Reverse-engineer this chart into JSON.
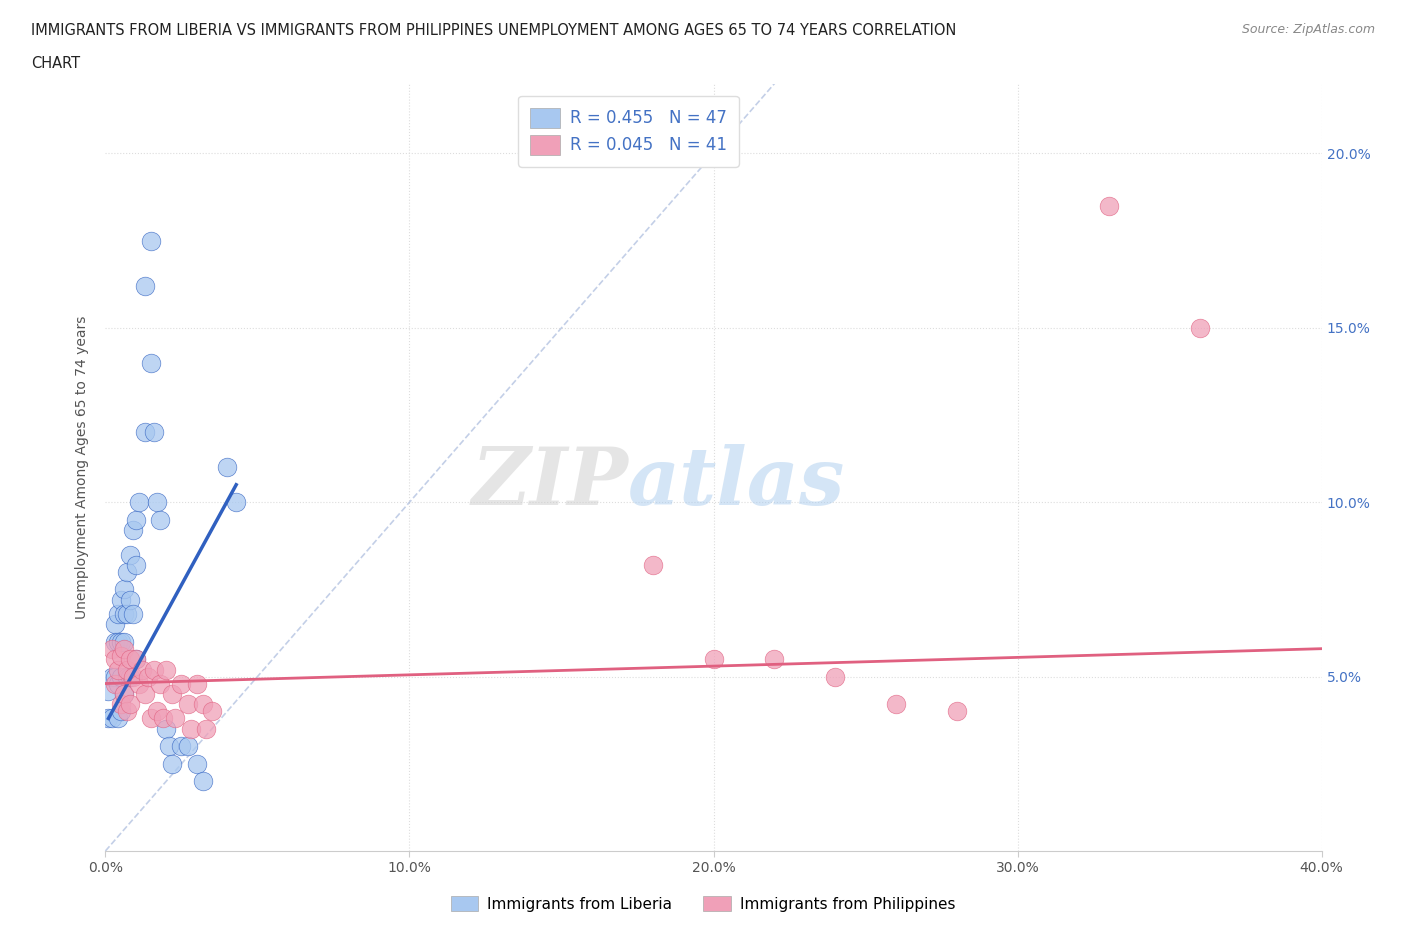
{
  "title_line1": "IMMIGRANTS FROM LIBERIA VS IMMIGRANTS FROM PHILIPPINES UNEMPLOYMENT AMONG AGES 65 TO 74 YEARS CORRELATION",
  "title_line2": "CHART",
  "source_text": "Source: ZipAtlas.com",
  "ylabel": "Unemployment Among Ages 65 to 74 years",
  "xlim": [
    0.0,
    0.4
  ],
  "ylim": [
    0.0,
    0.22
  ],
  "xtick_labels": [
    "0.0%",
    "10.0%",
    "20.0%",
    "30.0%",
    "40.0%"
  ],
  "xtick_values": [
    0.0,
    0.1,
    0.2,
    0.3,
    0.4
  ],
  "ytick_labels": [
    "5.0%",
    "10.0%",
    "15.0%",
    "20.0%"
  ],
  "ytick_values": [
    0.05,
    0.1,
    0.15,
    0.2
  ],
  "legend_liberia": "Immigrants from Liberia",
  "legend_philippines": "Immigrants from Philippines",
  "R_liberia": 0.455,
  "N_liberia": 47,
  "R_philippines": 0.045,
  "N_philippines": 41,
  "color_liberia": "#A8C8F0",
  "color_liberia_line": "#3060C0",
  "color_philippines": "#F0A0B8",
  "color_philippines_line": "#E06080",
  "color_diagonal": "#AABBDD",
  "watermark_left": "ZIP",
  "watermark_right": "atlas",
  "background_color": "#ffffff",
  "grid_color": "#DDDDDD",
  "liberia_x": [
    0.001,
    0.001,
    0.002,
    0.002,
    0.003,
    0.003,
    0.003,
    0.004,
    0.004,
    0.004,
    0.004,
    0.005,
    0.005,
    0.005,
    0.005,
    0.006,
    0.006,
    0.006,
    0.006,
    0.007,
    0.007,
    0.007,
    0.008,
    0.008,
    0.008,
    0.009,
    0.009,
    0.01,
    0.01,
    0.01,
    0.011,
    0.013,
    0.013,
    0.015,
    0.015,
    0.016,
    0.017,
    0.018,
    0.02,
    0.021,
    0.022,
    0.025,
    0.027,
    0.03,
    0.032,
    0.04,
    0.043
  ],
  "liberia_y": [
    0.046,
    0.038,
    0.05,
    0.038,
    0.065,
    0.06,
    0.05,
    0.068,
    0.06,
    0.048,
    0.038,
    0.072,
    0.06,
    0.05,
    0.04,
    0.075,
    0.068,
    0.06,
    0.045,
    0.08,
    0.068,
    0.05,
    0.085,
    0.072,
    0.05,
    0.092,
    0.068,
    0.095,
    0.082,
    0.055,
    0.1,
    0.162,
    0.12,
    0.175,
    0.14,
    0.12,
    0.1,
    0.095,
    0.035,
    0.03,
    0.025,
    0.03,
    0.03,
    0.025,
    0.02,
    0.11,
    0.1
  ],
  "philippines_x": [
    0.002,
    0.003,
    0.003,
    0.004,
    0.005,
    0.005,
    0.006,
    0.006,
    0.007,
    0.007,
    0.008,
    0.008,
    0.009,
    0.01,
    0.011,
    0.012,
    0.013,
    0.014,
    0.015,
    0.016,
    0.017,
    0.018,
    0.019,
    0.02,
    0.022,
    0.023,
    0.025,
    0.027,
    0.028,
    0.03,
    0.032,
    0.033,
    0.035,
    0.18,
    0.2,
    0.22,
    0.24,
    0.26,
    0.28,
    0.33,
    0.36
  ],
  "philippines_y": [
    0.058,
    0.055,
    0.048,
    0.052,
    0.056,
    0.042,
    0.058,
    0.045,
    0.052,
    0.04,
    0.055,
    0.042,
    0.05,
    0.055,
    0.048,
    0.052,
    0.045,
    0.05,
    0.038,
    0.052,
    0.04,
    0.048,
    0.038,
    0.052,
    0.045,
    0.038,
    0.048,
    0.042,
    0.035,
    0.048,
    0.042,
    0.035,
    0.04,
    0.082,
    0.055,
    0.055,
    0.05,
    0.042,
    0.04,
    0.185,
    0.15
  ],
  "lib_trend_x": [
    0.001,
    0.043
  ],
  "lib_trend_y": [
    0.038,
    0.105
  ],
  "phi_trend_x": [
    0.0,
    0.4
  ],
  "phi_trend_y": [
    0.048,
    0.058
  ]
}
